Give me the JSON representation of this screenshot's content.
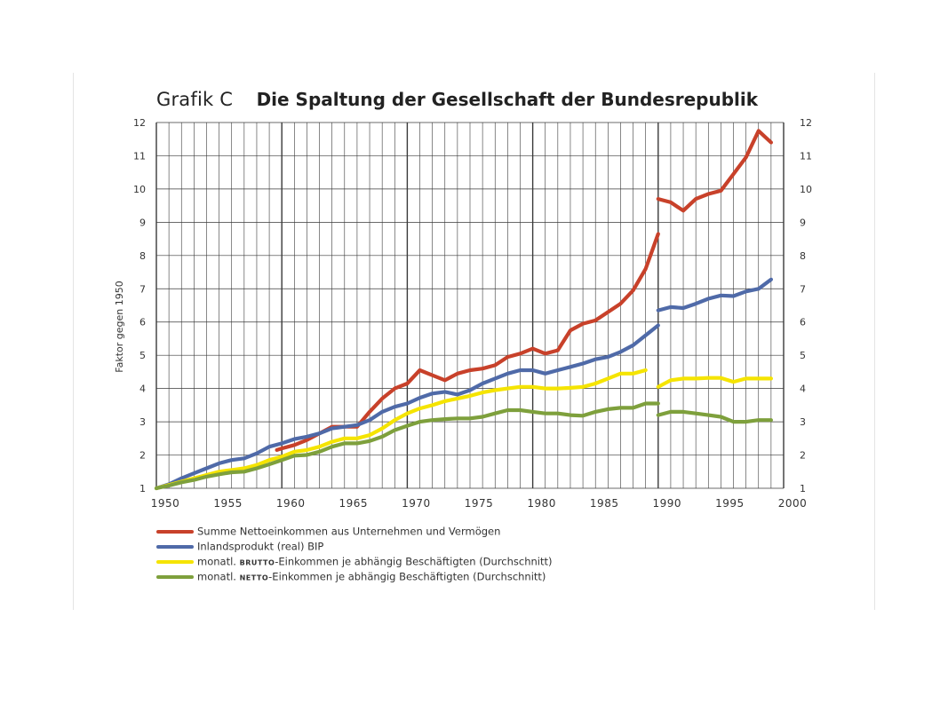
{
  "title": {
    "prefix": "Grafik C",
    "main": "Die Spaltung der Gesellschaft der Bundesrepublik"
  },
  "legend": [
    {
      "parts": [
        "Summe Nettoeinkommen aus Unternehmen und Vermögen"
      ],
      "color": "#c8412a"
    },
    {
      "parts": [
        "Inlandsprodukt (real) BIP"
      ],
      "color": "#4f6aa8"
    },
    {
      "parts": [
        "monatl. ",
        "brutto",
        "-Einkommen je abhängig Beschäftigten (Durchschnitt)"
      ],
      "color": "#f5e400"
    },
    {
      "parts": [
        "monatl. ",
        "netto",
        "-Einkommen je abhängig Beschäftigten (Durchschnitt)"
      ],
      "color": "#7ea03c"
    }
  ],
  "chart_data": {
    "type": "line",
    "title": "Die Spaltung der Gesellschaft der Bundesrepublik",
    "ylabel": "Faktor gegen 1950",
    "xlabel": "",
    "xlim": [
      1950,
      2000
    ],
    "ylim": [
      1,
      12
    ],
    "x_ticks": [
      1950,
      1955,
      1960,
      1965,
      1970,
      1975,
      1980,
      1985,
      1990,
      1995,
      2000
    ],
    "y_ticks": [
      1,
      2,
      3,
      4,
      5,
      6,
      7,
      8,
      9,
      10,
      11,
      12
    ],
    "grid": true,
    "legend_position": "bottom",
    "series": [
      {
        "name": "Summe Nettoeinkommen aus Unternehmen und Vermögen",
        "color": "#c8412a",
        "segments": [
          [
            [
              1959.6,
              2.15
            ],
            [
              1960,
              2.2
            ],
            [
              1961,
              2.3
            ],
            [
              1962,
              2.45
            ],
            [
              1963,
              2.65
            ],
            [
              1964,
              2.85
            ],
            [
              1965,
              2.85
            ],
            [
              1966,
              2.85
            ],
            [
              1967,
              3.3
            ],
            [
              1968,
              3.7
            ],
            [
              1969,
              4.0
            ],
            [
              1970,
              4.15
            ],
            [
              1971,
              4.55
            ],
            [
              1972,
              4.4
            ],
            [
              1973,
              4.25
            ],
            [
              1974,
              4.45
            ],
            [
              1975,
              4.55
            ],
            [
              1976,
              4.6
            ],
            [
              1977,
              4.7
            ],
            [
              1978,
              4.95
            ],
            [
              1979,
              5.05
            ],
            [
              1980,
              5.2
            ],
            [
              1981,
              5.05
            ],
            [
              1982,
              5.15
            ],
            [
              1983,
              5.75
            ],
            [
              1984,
              5.95
            ],
            [
              1985,
              6.05
            ],
            [
              1986,
              6.3
            ],
            [
              1987,
              6.55
            ],
            [
              1988,
              6.95
            ],
            [
              1989,
              7.6
            ],
            [
              1990,
              8.65
            ]
          ],
          [
            [
              1990,
              9.7
            ],
            [
              1991,
              9.6
            ],
            [
              1992,
              9.35
            ],
            [
              1993,
              9.7
            ],
            [
              1994,
              9.85
            ],
            [
              1995,
              9.95
            ],
            [
              1996,
              10.45
            ],
            [
              1997,
              10.95
            ],
            [
              1998,
              11.75
            ],
            [
              1999,
              11.4
            ]
          ]
        ]
      },
      {
        "name": "Inlandsprodukt (real) BIP",
        "color": "#4f6aa8",
        "segments": [
          [
            [
              1950,
              1.0
            ],
            [
              1951,
              1.12
            ],
            [
              1952,
              1.3
            ],
            [
              1953,
              1.45
            ],
            [
              1954,
              1.6
            ],
            [
              1955,
              1.75
            ],
            [
              1956,
              1.85
            ],
            [
              1957,
              1.9
            ],
            [
              1958,
              2.05
            ],
            [
              1959,
              2.25
            ],
            [
              1960,
              2.35
            ],
            [
              1961,
              2.48
            ],
            [
              1962,
              2.55
            ],
            [
              1963,
              2.65
            ],
            [
              1964,
              2.8
            ],
            [
              1965,
              2.85
            ],
            [
              1966,
              2.9
            ],
            [
              1967,
              3.05
            ],
            [
              1968,
              3.3
            ],
            [
              1969,
              3.45
            ],
            [
              1970,
              3.55
            ],
            [
              1971,
              3.72
            ],
            [
              1972,
              3.85
            ],
            [
              1973,
              3.9
            ],
            [
              1974,
              3.82
            ],
            [
              1975,
              3.95
            ],
            [
              1976,
              4.15
            ],
            [
              1977,
              4.3
            ],
            [
              1978,
              4.45
            ],
            [
              1979,
              4.55
            ],
            [
              1980,
              4.55
            ],
            [
              1981,
              4.45
            ],
            [
              1982,
              4.55
            ],
            [
              1983,
              4.65
            ],
            [
              1984,
              4.75
            ],
            [
              1985,
              4.88
            ],
            [
              1986,
              4.95
            ],
            [
              1987,
              5.1
            ],
            [
              1988,
              5.3
            ],
            [
              1989,
              5.6
            ],
            [
              1990,
              5.9
            ]
          ],
          [
            [
              1990,
              6.35
            ],
            [
              1991,
              6.45
            ],
            [
              1992,
              6.42
            ],
            [
              1993,
              6.55
            ],
            [
              1994,
              6.7
            ],
            [
              1995,
              6.8
            ],
            [
              1996,
              6.78
            ],
            [
              1997,
              6.92
            ],
            [
              1998,
              7.0
            ],
            [
              1999,
              7.28
            ]
          ]
        ]
      },
      {
        "name": "monatl. BRUTTO-Einkommen je abhängig Beschäftigten (Durchschnitt)",
        "color": "#f5e400",
        "segments": [
          [
            [
              1950,
              1.0
            ],
            [
              1951,
              1.1
            ],
            [
              1952,
              1.2
            ],
            [
              1953,
              1.3
            ],
            [
              1954,
              1.4
            ],
            [
              1955,
              1.5
            ],
            [
              1956,
              1.55
            ],
            [
              1957,
              1.6
            ],
            [
              1958,
              1.7
            ],
            [
              1959,
              1.85
            ],
            [
              1960,
              1.95
            ],
            [
              1961,
              2.1
            ],
            [
              1962,
              2.15
            ],
            [
              1963,
              2.25
            ],
            [
              1964,
              2.4
            ],
            [
              1965,
              2.5
            ],
            [
              1966,
              2.5
            ],
            [
              1967,
              2.6
            ],
            [
              1968,
              2.8
            ],
            [
              1969,
              3.05
            ],
            [
              1970,
              3.25
            ],
            [
              1971,
              3.4
            ],
            [
              1972,
              3.5
            ],
            [
              1973,
              3.62
            ],
            [
              1974,
              3.7
            ],
            [
              1975,
              3.78
            ],
            [
              1976,
              3.88
            ],
            [
              1977,
              3.95
            ],
            [
              1978,
              4.0
            ],
            [
              1979,
              4.05
            ],
            [
              1980,
              4.05
            ],
            [
              1981,
              4.0
            ],
            [
              1982,
              4.0
            ],
            [
              1983,
              4.02
            ],
            [
              1984,
              4.05
            ],
            [
              1985,
              4.15
            ],
            [
              1986,
              4.3
            ],
            [
              1987,
              4.45
            ],
            [
              1988,
              4.45
            ],
            [
              1989,
              4.55
            ]
          ],
          [
            [
              1990,
              4.05
            ],
            [
              1991,
              4.25
            ],
            [
              1992,
              4.3
            ],
            [
              1993,
              4.3
            ],
            [
              1994,
              4.32
            ],
            [
              1995,
              4.32
            ],
            [
              1996,
              4.2
            ],
            [
              1997,
              4.3
            ],
            [
              1998,
              4.3
            ],
            [
              1999,
              4.3
            ]
          ]
        ]
      },
      {
        "name": "monatl. NETTO-Einkommen je abhängig Beschäftigten (Durchschnitt)",
        "color": "#7ea03c",
        "segments": [
          [
            [
              1950,
              1.0
            ],
            [
              1951,
              1.08
            ],
            [
              1952,
              1.18
            ],
            [
              1953,
              1.25
            ],
            [
              1954,
              1.35
            ],
            [
              1955,
              1.42
            ],
            [
              1956,
              1.48
            ],
            [
              1957,
              1.5
            ],
            [
              1958,
              1.6
            ],
            [
              1959,
              1.72
            ],
            [
              1960,
              1.85
            ],
            [
              1961,
              1.98
            ],
            [
              1962,
              2.0
            ],
            [
              1963,
              2.1
            ],
            [
              1964,
              2.25
            ],
            [
              1965,
              2.35
            ],
            [
              1966,
              2.35
            ],
            [
              1967,
              2.42
            ],
            [
              1968,
              2.55
            ],
            [
              1969,
              2.75
            ],
            [
              1970,
              2.88
            ],
            [
              1971,
              3.0
            ],
            [
              1972,
              3.05
            ],
            [
              1973,
              3.08
            ],
            [
              1974,
              3.1
            ],
            [
              1975,
              3.1
            ],
            [
              1976,
              3.15
            ],
            [
              1977,
              3.25
            ],
            [
              1978,
              3.35
            ],
            [
              1979,
              3.35
            ],
            [
              1980,
              3.3
            ],
            [
              1981,
              3.25
            ],
            [
              1982,
              3.25
            ],
            [
              1983,
              3.2
            ],
            [
              1984,
              3.18
            ],
            [
              1985,
              3.3
            ],
            [
              1986,
              3.38
            ],
            [
              1987,
              3.42
            ],
            [
              1988,
              3.42
            ],
            [
              1989,
              3.55
            ],
            [
              1990,
              3.55
            ]
          ],
          [
            [
              1990,
              3.2
            ],
            [
              1991,
              3.3
            ],
            [
              1992,
              3.3
            ],
            [
              1993,
              3.25
            ],
            [
              1994,
              3.2
            ],
            [
              1995,
              3.15
            ],
            [
              1996,
              3.0
            ],
            [
              1997,
              3.0
            ],
            [
              1998,
              3.05
            ],
            [
              1999,
              3.05
            ]
          ]
        ]
      }
    ]
  }
}
